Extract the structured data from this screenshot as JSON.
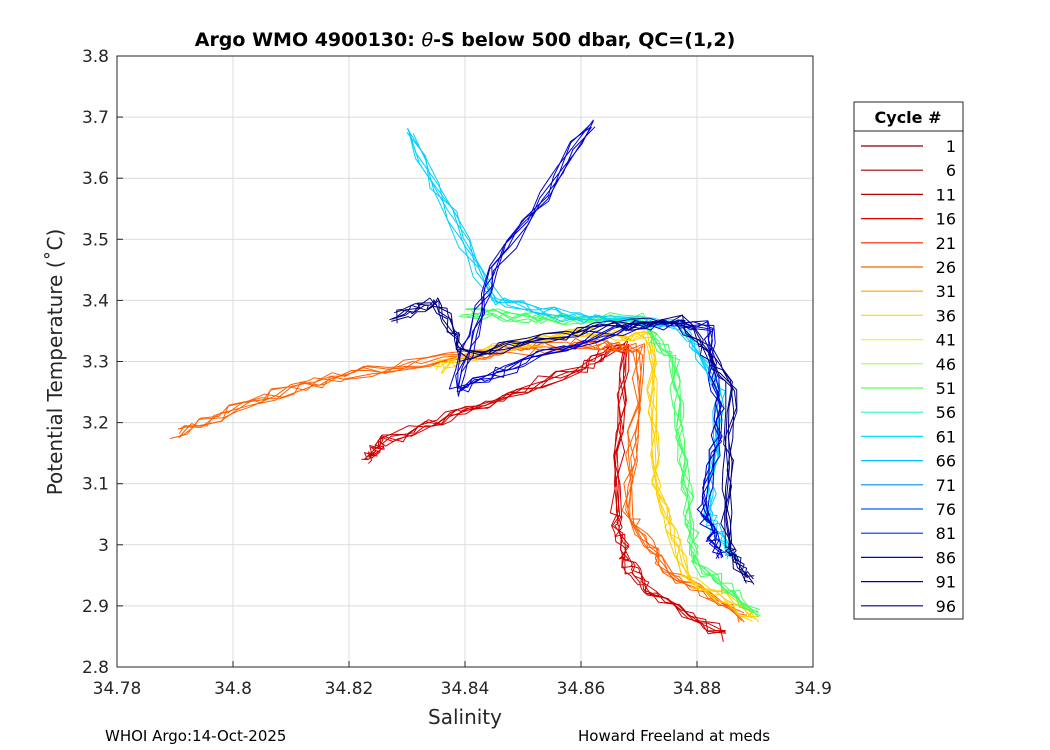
{
  "chart_data": {
    "type": "line",
    "title_prefix": "Argo WMO 4900130: ",
    "title_symbol": "θ",
    "title_suffix": "-S below 500 dbar,  QC=(1,2)",
    "xlabel": "Salinity",
    "ylabel": "Potential Temperature (˚C)",
    "xlim": [
      34.78,
      34.9
    ],
    "ylim": [
      2.8,
      3.8
    ],
    "xticks": [
      34.78,
      34.8,
      34.82,
      34.84,
      34.86,
      34.88,
      34.9
    ],
    "xtick_labels": [
      "34.78",
      "34.8",
      "34.82",
      "34.84",
      "34.86",
      "34.88",
      "34.9"
    ],
    "yticks": [
      2.8,
      2.9,
      3.0,
      3.1,
      3.2,
      3.3,
      3.4,
      3.5,
      3.6,
      3.7,
      3.8
    ],
    "ytick_labels": [
      "2.8",
      "2.9",
      "3",
      "3.1",
      "3.2",
      "3.3",
      "3.4",
      "3.5",
      "3.6",
      "3.7",
      "3.8"
    ],
    "grid": true,
    "legend_title": "Cycle #",
    "legend_position": "outside-right",
    "legend": [
      {
        "label": "1",
        "color": "#800000"
      },
      {
        "label": "6",
        "color": "#a00000"
      },
      {
        "label": "11",
        "color": "#c00000"
      },
      {
        "label": "16",
        "color": "#e00000"
      },
      {
        "label": "21",
        "color": "#ff2000"
      },
      {
        "label": "26",
        "color": "#ff6000"
      },
      {
        "label": "31",
        "color": "#ffa000"
      },
      {
        "label": "36",
        "color": "#ffe000"
      },
      {
        "label": "41",
        "color": "#e0ff20"
      },
      {
        "label": "46",
        "color": "#a0ff60"
      },
      {
        "label": "51",
        "color": "#60ff60"
      },
      {
        "label": "56",
        "color": "#20ffc0"
      },
      {
        "label": "61",
        "color": "#00e0ff"
      },
      {
        "label": "66",
        "color": "#00c0ff"
      },
      {
        "label": "71",
        "color": "#0090ff"
      },
      {
        "label": "76",
        "color": "#0060ff"
      },
      {
        "label": "81",
        "color": "#0030ff"
      },
      {
        "label": "86",
        "color": "#0000e0"
      },
      {
        "label": "91",
        "color": "#0000b0"
      },
      {
        "label": "96",
        "color": "#000090"
      }
    ],
    "series": [
      {
        "name": "red-family",
        "color": "#d00000",
        "x": [
          34.823,
          34.826,
          34.84,
          34.86,
          34.868,
          34.866,
          34.868,
          34.872,
          34.885
        ],
        "y": [
          3.14,
          3.17,
          3.22,
          3.29,
          3.33,
          3.05,
          2.97,
          2.92,
          2.85
        ]
      },
      {
        "name": "orange-family",
        "color": "#ff6000",
        "x": [
          34.79,
          34.805,
          34.82,
          34.84,
          34.86,
          34.87,
          34.868,
          34.875,
          34.888
        ],
        "y": [
          3.18,
          3.24,
          3.28,
          3.31,
          3.33,
          3.32,
          3.05,
          2.96,
          2.88
        ]
      },
      {
        "name": "yellow-family",
        "color": "#ffd000",
        "x": [
          34.835,
          34.845,
          34.86,
          34.872,
          34.873,
          34.878,
          34.89
        ],
        "y": [
          3.29,
          3.32,
          3.35,
          3.34,
          3.1,
          2.95,
          2.88
        ]
      },
      {
        "name": "green-family",
        "color": "#40ff60",
        "x": [
          34.84,
          34.855,
          34.87,
          34.876,
          34.878,
          34.88,
          34.89
        ],
        "y": [
          3.38,
          3.37,
          3.37,
          3.3,
          3.1,
          2.97,
          2.89
        ]
      },
      {
        "name": "cyan-family",
        "color": "#00d0ff",
        "x": [
          34.83,
          34.845,
          34.86,
          34.877,
          34.884,
          34.882,
          34.886
        ],
        "y": [
          3.68,
          3.4,
          3.37,
          3.36,
          3.25,
          3.05,
          2.98
        ]
      },
      {
        "name": "blue-family",
        "color": "#0000d0",
        "x": [
          34.862,
          34.845,
          34.838,
          34.85,
          34.87,
          34.882,
          34.884,
          34.881,
          34.884
        ],
        "y": [
          3.69,
          3.45,
          3.25,
          3.3,
          3.36,
          3.36,
          3.2,
          3.05,
          2.98
        ]
      },
      {
        "name": "dark-family",
        "color": "#000080",
        "x": [
          34.828,
          34.835,
          34.84,
          34.86,
          34.877,
          34.886,
          34.885,
          34.889
        ],
        "y": [
          3.37,
          3.4,
          3.31,
          3.35,
          3.37,
          3.26,
          3.0,
          2.94
        ]
      }
    ]
  },
  "footer": {
    "left": "WHOI Argo:14-Oct-2025",
    "right": "Howard Freeland at meds"
  }
}
